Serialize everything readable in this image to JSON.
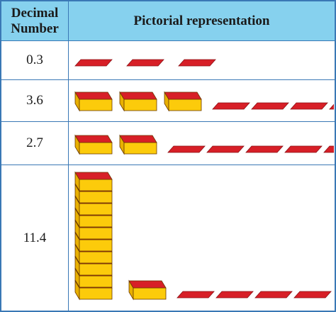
{
  "header": {
    "number": "Decimal Number",
    "picture": "Pictorial representation"
  },
  "table": {
    "rows": [
      {
        "decimal": 0.3
      },
      {
        "decimal": 3.6
      },
      {
        "decimal": 2.7
      },
      {
        "decimal": 11.4
      }
    ]
  }
}
